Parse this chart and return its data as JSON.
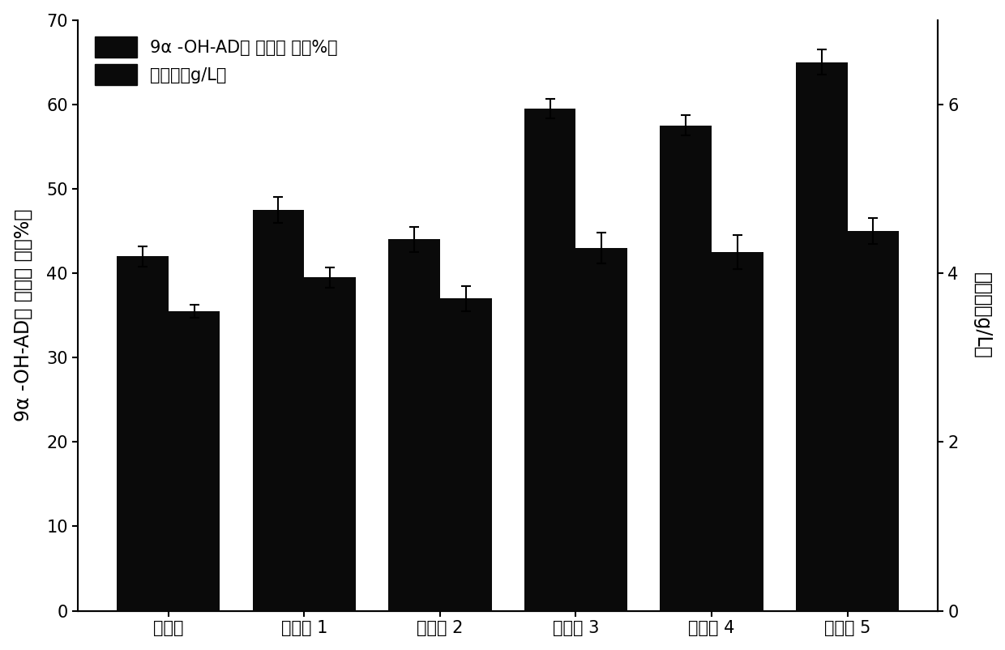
{
  "categories": [
    "对照组",
    "实验组 1",
    "实验组 2",
    "实验组 3",
    "实验组 4",
    "实验组 5"
  ],
  "bar1_values": [
    42.0,
    47.5,
    44.0,
    59.5,
    57.5,
    65.0
  ],
  "bar1_errors": [
    1.2,
    1.5,
    1.5,
    1.2,
    1.2,
    1.5
  ],
  "bar2_values": [
    3.55,
    3.95,
    3.7,
    4.3,
    4.25,
    4.5
  ],
  "bar2_errors": [
    0.08,
    0.12,
    0.15,
    0.18,
    0.2,
    0.15
  ],
  "bar_color": "#0a0a0a",
  "bar_width": 0.38,
  "left_ylim": [
    0,
    70
  ],
  "left_yticks": [
    0,
    10,
    20,
    30,
    40,
    50,
    60,
    70
  ],
  "right_ylim": [
    0,
    7
  ],
  "right_yticks": [
    0,
    2,
    4,
    6
  ],
  "right_ylabel": "生物量（g/L）",
  "left_ylabel": "9α -OH-AD的 摩尔得 率（%）",
  "legend_label1": "9α -OH-AD的 摩尔得 率（%）",
  "legend_label2": "生物量（g/L）",
  "background_color": "#ffffff",
  "axis_fontsize": 17,
  "tick_fontsize": 15,
  "legend_fontsize": 15
}
